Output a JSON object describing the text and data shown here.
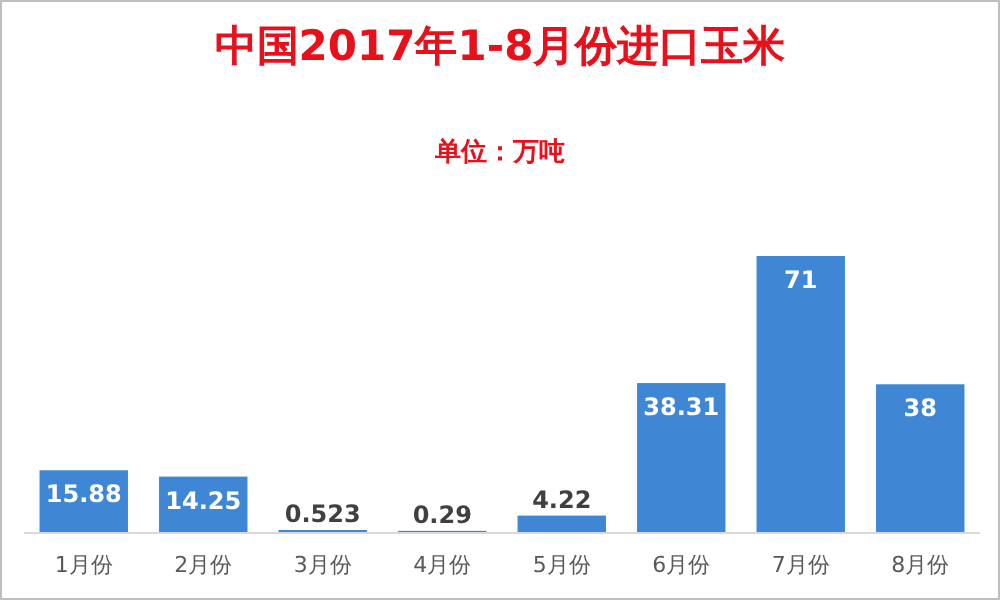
{
  "chart_data": {
    "type": "bar",
    "title": "中国2017年1-8月份进口玉米",
    "subtitle": "单位：万吨",
    "categories": [
      "1月份",
      "2月份",
      "3月份",
      "4月份",
      "5月份",
      "6月份",
      "7月份",
      "8月份"
    ],
    "values": [
      15.88,
      14.25,
      0.523,
      0.29,
      4.22,
      38.31,
      71,
      38
    ],
    "color": "#3f87d4",
    "data_labels": true
  }
}
